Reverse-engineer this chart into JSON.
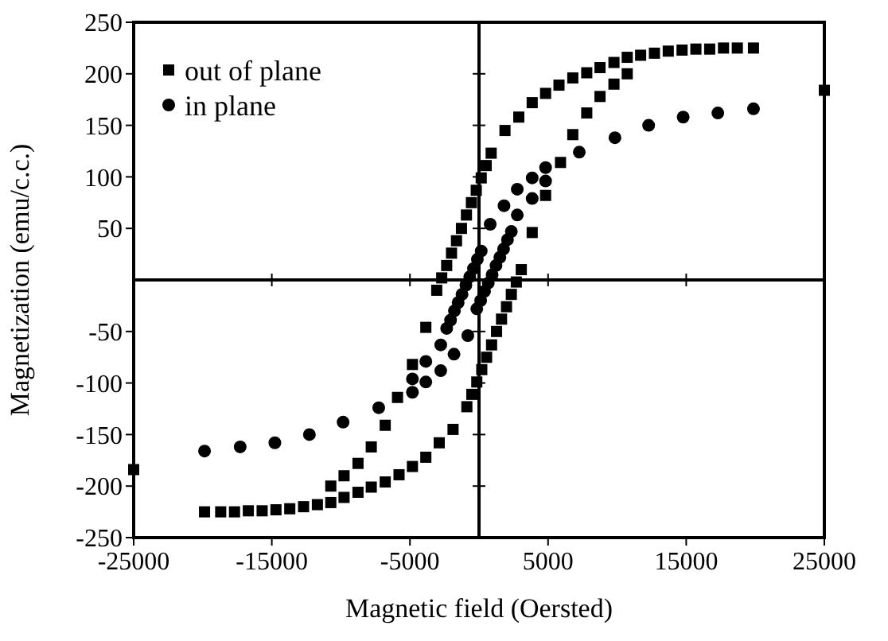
{
  "chart_data": {
    "type": "scatter",
    "xlabel": "Magnetic field (Oersted)",
    "ylabel": "Magnetization (emu/c.c.)",
    "xlim": [
      -25000,
      25000
    ],
    "ylim": [
      -250,
      250
    ],
    "xticks": [
      -25000,
      -15000,
      -5000,
      5000,
      15000,
      25000
    ],
    "yticks": [
      -250,
      -200,
      -150,
      -100,
      -50,
      50,
      100,
      150,
      200,
      250
    ],
    "grid": false,
    "legend": "top left",
    "series": [
      {
        "name": "out of plane",
        "color": "#000000",
        "marker": "square",
        "x": [
          1880,
          2880,
          3850,
          4820,
          5790,
          6790,
          7800,
          8760,
          9770,
          10730,
          11700,
          12700,
          13700,
          14700,
          15700,
          16700,
          17700,
          18700,
          19870,
          3850,
          4820,
          5900,
          6790,
          7800,
          8760,
          9770,
          10730,
          -1880,
          -2880,
          -3850,
          -4820,
          -5790,
          -6790,
          -7800,
          -8760,
          -9770,
          -10730,
          -11700,
          -12700,
          -13700,
          -14700,
          -15700,
          -16700,
          -17700,
          -18700,
          -19870,
          -3850,
          -4820,
          -5900,
          -6790,
          -7800,
          -8760,
          -9770,
          -10730,
          25000,
          -25000,
          -3060,
          -2700,
          -2340,
          -1990,
          -1630,
          -1270,
          -910,
          -550,
          -200,
          160,
          520,
          880,
          3060,
          2700,
          2340,
          1990,
          1630,
          1270,
          910,
          550,
          200,
          -160,
          -520,
          -880
        ],
        "values": [
          145,
          158,
          172,
          181,
          189,
          196,
          201,
          206,
          211,
          216,
          218,
          220,
          222,
          223,
          224,
          224,
          225,
          225,
          225,
          46,
          82,
          114,
          141,
          162,
          178,
          190,
          200,
          -145,
          -158,
          -172,
          -181,
          -189,
          -196,
          -201,
          -206,
          -211,
          -216,
          -218,
          -220,
          -222,
          -223,
          -224,
          -224,
          -225,
          -225,
          -225,
          -46,
          -82,
          -114,
          -141,
          -162,
          -178,
          -190,
          -200,
          184,
          -184,
          -10,
          2,
          14,
          26,
          38,
          50,
          63,
          75,
          87,
          99,
          111,
          123,
          10,
          -2,
          -14,
          -26,
          -38,
          -50,
          -63,
          -75,
          -87,
          -99,
          -111,
          -123
        ]
      },
      {
        "name": "in plane",
        "color": "#000000",
        "marker": "circle",
        "x": [
          19870,
          17290,
          14780,
          12280,
          9840,
          7260,
          4820,
          3850,
          2770,
          1810,
          810,
          4820,
          3850,
          2770,
          -19870,
          -17290,
          -14780,
          -12280,
          -9840,
          -7260,
          -4820,
          -3850,
          -2770,
          -1810,
          -810,
          -4820,
          -3850,
          -2770,
          -2340,
          -2060,
          -1780,
          -1510,
          -1230,
          -950,
          -670,
          -400,
          -120,
          160,
          2340,
          2060,
          1780,
          1510,
          1230,
          950,
          670,
          400,
          120,
          -160
        ],
        "values": [
          166,
          162,
          158,
          150,
          138,
          124,
          109,
          99,
          88,
          72,
          54,
          96,
          79,
          63,
          -166,
          -162,
          -158,
          -150,
          -138,
          -124,
          -109,
          -99,
          -88,
          -72,
          -54,
          -96,
          -79,
          -63,
          -47,
          -39,
          -30,
          -22,
          -14,
          -5,
          3,
          11,
          20,
          28,
          47,
          39,
          30,
          22,
          14,
          5,
          -3,
          -11,
          -20,
          -28
        ]
      }
    ]
  }
}
